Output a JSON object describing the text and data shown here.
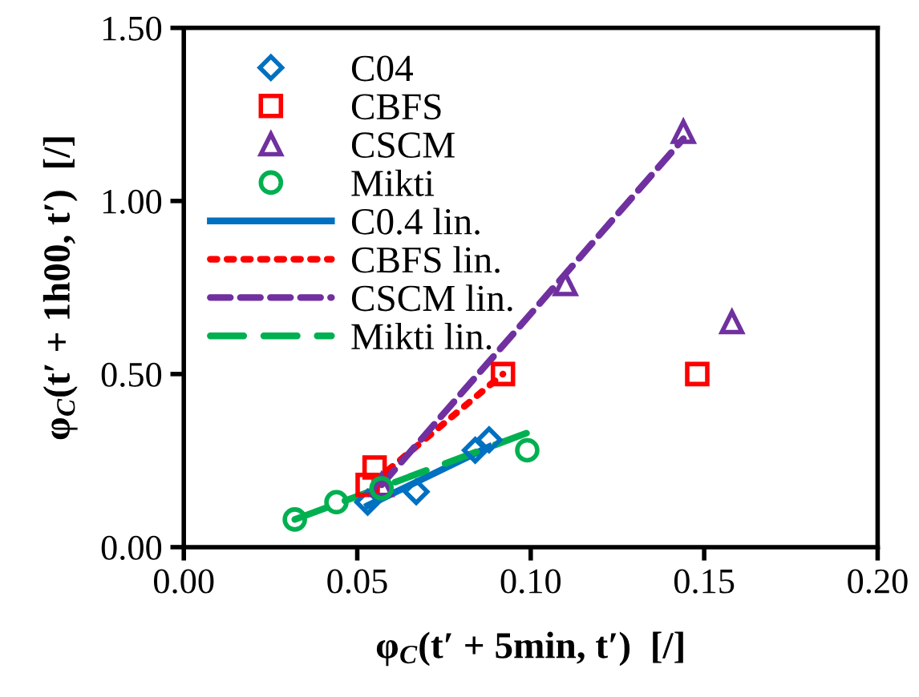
{
  "chart_data": {
    "type": "scatter",
    "xlabel": "φ$_{C}$(t′ + 5min, t′)  [/]",
    "ylabel": "φ$_{C}$(t′ + 1h00, t′)  [/]",
    "xlim": [
      0,
      0.2
    ],
    "ylim": [
      0,
      1.5
    ],
    "xticks": [
      {
        "value": 0,
        "label": "0.00"
      },
      {
        "value": 0.05,
        "label": "0.05"
      },
      {
        "value": 0.1,
        "label": "0.10"
      },
      {
        "value": 0.15,
        "label": "0.15"
      },
      {
        "value": 0.2,
        "label": "0.20"
      }
    ],
    "yticks": [
      {
        "value": 0,
        "label": "0.00"
      },
      {
        "value": 0.5,
        "label": "0.50"
      },
      {
        "value": 1.0,
        "label": "1.00"
      },
      {
        "value": 1.5,
        "label": "1.50"
      }
    ],
    "grid": false,
    "legend": "top left",
    "series": [
      {
        "name": "C04",
        "marker": "diamond",
        "color": "#0070c0",
        "x": [
          0.053,
          0.067,
          0.084,
          0.088
        ],
        "values": [
          0.13,
          0.16,
          0.28,
          0.31
        ]
      },
      {
        "name": "CBFS",
        "marker": "square",
        "color": "#ff0000",
        "x": [
          0.053,
          0.055,
          0.092,
          0.148
        ],
        "values": [
          0.18,
          0.23,
          0.5,
          0.5
        ]
      },
      {
        "name": "CSCM",
        "marker": "triangle",
        "color": "#7030a0",
        "x": [
          0.057,
          0.11,
          0.144,
          0.158
        ],
        "values": [
          0.18,
          0.76,
          1.2,
          0.65
        ]
      },
      {
        "name": "Mikti",
        "marker": "circle",
        "color": "#00b050",
        "x": [
          0.032,
          0.044,
          0.057,
          0.099
        ],
        "values": [
          0.08,
          0.13,
          0.17,
          0.28
        ]
      },
      {
        "name": "C0.4 lin.",
        "type": "line",
        "line_style": "solid",
        "color": "#0070c0",
        "x": [
          0.053,
          0.088
        ],
        "values": [
          0.12,
          0.29
        ]
      },
      {
        "name": "CBFS lin.",
        "type": "line",
        "line_style": "dotted",
        "color": "#ff0000",
        "x": [
          0.055,
          0.092
        ],
        "values": [
          0.19,
          0.5
        ]
      },
      {
        "name": "CSCM lin.",
        "type": "line",
        "line_style": "dashed",
        "color": "#7030a0",
        "x": [
          0.057,
          0.144
        ],
        "values": [
          0.18,
          1.18
        ]
      },
      {
        "name": "Mikti lin.",
        "type": "line",
        "line_style": "longdash",
        "color": "#00b050",
        "x": [
          0.032,
          0.099
        ],
        "values": [
          0.08,
          0.33
        ]
      }
    ]
  }
}
